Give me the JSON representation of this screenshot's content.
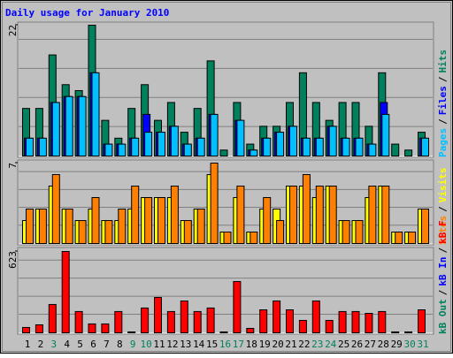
{
  "chart_data": [
    {
      "type": "bar",
      "title": "Daily usage for January 2010",
      "categories": [
        "1",
        "2",
        "3",
        "4",
        "5",
        "6",
        "7",
        "8",
        "9",
        "10",
        "11",
        "12",
        "13",
        "14",
        "15",
        "16",
        "17",
        "18",
        "19",
        "20",
        "21",
        "22",
        "23",
        "24",
        "25",
        "26",
        "27",
        "28",
        "29",
        "30",
        "31"
      ],
      "weekend": [
        false,
        false,
        true,
        false,
        false,
        false,
        false,
        false,
        true,
        true,
        false,
        false,
        false,
        false,
        false,
        true,
        true,
        false,
        false,
        false,
        false,
        false,
        true,
        true,
        false,
        false,
        false,
        false,
        false,
        true,
        true
      ],
      "legend_separator": "/",
      "ylim": [
        0,
        22
      ],
      "yticks": [
        22
      ],
      "series": [
        {
          "name": "Hits",
          "color": "#00805c",
          "values": [
            8,
            8,
            17,
            12,
            11,
            22,
            6,
            3,
            8,
            12,
            6,
            9,
            4,
            8,
            16,
            1,
            9,
            2,
            5,
            5,
            9,
            14,
            9,
            6,
            9,
            9,
            5,
            14,
            2,
            1,
            4
          ]
        },
        {
          "name": "Files",
          "color": "#0000ff",
          "values": [
            3,
            3,
            9,
            10,
            10,
            14,
            2,
            2,
            3,
            7,
            4,
            5,
            2,
            3,
            7,
            0,
            6,
            1,
            3,
            4,
            5,
            3,
            3,
            5,
            3,
            3,
            2,
            9,
            0,
            0,
            3
          ]
        },
        {
          "name": "Pages",
          "color": "#00c0ff",
          "values": [
            3,
            3,
            9,
            10,
            10,
            14,
            2,
            2,
            3,
            4,
            4,
            5,
            2,
            3,
            7,
            0,
            6,
            1,
            3,
            4,
            5,
            3,
            3,
            5,
            3,
            3,
            2,
            7,
            0,
            0,
            3
          ]
        }
      ]
    },
    {
      "type": "bar",
      "ylim": [
        0,
        7
      ],
      "yticks": [
        7
      ],
      "series": [
        {
          "name": "Visits",
          "color": "#ffff00",
          "values": [
            2,
            3,
            5,
            3,
            2,
            3,
            2,
            2,
            3,
            4,
            4,
            4,
            2,
            3,
            6,
            1,
            4,
            1,
            3,
            3,
            5,
            5,
            4,
            5,
            2,
            2,
            4,
            5,
            1,
            1,
            3
          ]
        },
        {
          "name": "Sites",
          "color": "#ff8000",
          "values": [
            3,
            3,
            6,
            3,
            2,
            4,
            2,
            3,
            5,
            4,
            4,
            5,
            2,
            3,
            7,
            1,
            5,
            1,
            4,
            2,
            5,
            6,
            5,
            5,
            2,
            2,
            5,
            5,
            1,
            1,
            3
          ]
        }
      ]
    },
    {
      "type": "bar",
      "ylim": [
        0,
        623
      ],
      "yticks": [
        623
      ],
      "series": [
        {
          "name": "kB F",
          "color": "#ff0000",
          "values": [
            41,
            61,
            217,
            623,
            163,
            68,
            68,
            163,
            7,
            190,
            271,
            163,
            244,
            163,
            190,
            7,
            393,
            34,
            176,
            244,
            176,
            95,
            244,
            95,
            163,
            163,
            149,
            163,
            7,
            7,
            176
          ]
        },
        {
          "name": "kB In",
          "color": "#0000ff",
          "values": [
            0,
            0,
            0,
            0,
            0,
            0,
            0,
            0,
            0,
            0,
            0,
            0,
            0,
            0,
            0,
            0,
            0,
            0,
            0,
            0,
            0,
            0,
            0,
            0,
            0,
            0,
            0,
            0,
            0,
            0,
            0
          ]
        },
        {
          "name": "kB Out",
          "color": "#00805c",
          "values": [
            0,
            0,
            0,
            0,
            0,
            0,
            0,
            0,
            0,
            0,
            0,
            0,
            0,
            0,
            0,
            0,
            0,
            0,
            0,
            0,
            0,
            0,
            0,
            0,
            0,
            0,
            0,
            0,
            0,
            0,
            0
          ]
        }
      ]
    }
  ]
}
